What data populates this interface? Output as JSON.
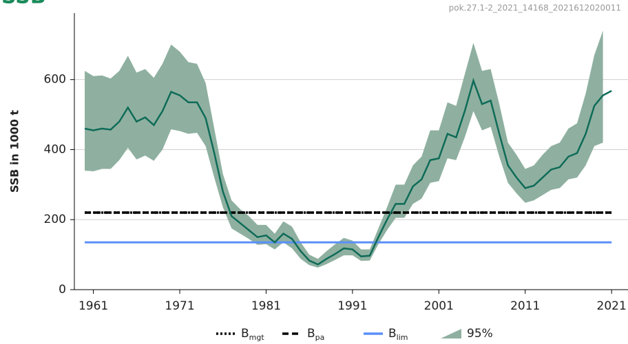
{
  "logo": "SSB",
  "chart_data": {
    "type": "line",
    "source_id": "pok.27.1-2_2021_14168_2021612020011",
    "ylabel": "SSB in 1000 t",
    "x": [
      1960,
      1961,
      1962,
      1963,
      1964,
      1965,
      1966,
      1967,
      1968,
      1969,
      1970,
      1971,
      1972,
      1973,
      1974,
      1975,
      1976,
      1977,
      1978,
      1979,
      1980,
      1981,
      1982,
      1983,
      1984,
      1985,
      1986,
      1987,
      1988,
      1989,
      1990,
      1991,
      1992,
      1993,
      1994,
      1995,
      1996,
      1997,
      1998,
      1999,
      2000,
      2001,
      2002,
      2003,
      2004,
      2005,
      2006,
      2007,
      2008,
      2009,
      2010,
      2011,
      2012,
      2013,
      2014,
      2015,
      2016,
      2017,
      2018,
      2019,
      2020,
      2021
    ],
    "series": [
      {
        "color": "#0e6b58",
        "values": [
          460,
          455,
          460,
          457,
          480,
          520,
          480,
          492,
          470,
          510,
          565,
          555,
          535,
          535,
          490,
          390,
          280,
          210,
          190,
          170,
          150,
          155,
          135,
          160,
          145,
          110,
          83,
          72,
          88,
          102,
          118,
          115,
          95,
          97,
          150,
          200,
          245,
          245,
          295,
          315,
          370,
          375,
          445,
          435,
          510,
          597,
          530,
          540,
          445,
          355,
          320,
          290,
          297,
          320,
          343,
          350,
          380,
          390,
          445,
          525,
          555,
          568
        ]
      }
    ],
    "band": {
      "name": "95%",
      "color": "#8fb0a0",
      "upper": [
        625,
        610,
        612,
        603,
        625,
        668,
        620,
        630,
        605,
        645,
        700,
        680,
        650,
        645,
        590,
        460,
        330,
        255,
        230,
        210,
        185,
        185,
        160,
        195,
        180,
        135,
        100,
        88,
        110,
        130,
        148,
        140,
        115,
        115,
        175,
        235,
        300,
        300,
        355,
        380,
        455,
        455,
        535,
        525,
        615,
        705,
        625,
        630,
        530,
        420,
        385,
        345,
        355,
        385,
        410,
        420,
        460,
        475,
        560,
        670,
        740,
        null
      ],
      "lower": [
        340,
        338,
        345,
        345,
        370,
        405,
        372,
        383,
        368,
        400,
        458,
        453,
        445,
        448,
        410,
        320,
        235,
        175,
        160,
        145,
        128,
        130,
        115,
        135,
        118,
        88,
        70,
        63,
        73,
        85,
        98,
        98,
        82,
        83,
        130,
        170,
        205,
        205,
        245,
        260,
        305,
        310,
        375,
        370,
        435,
        510,
        455,
        465,
        380,
        305,
        275,
        248,
        255,
        270,
        285,
        290,
        315,
        320,
        355,
        410,
        420,
        null
      ]
    },
    "reference_lines": [
      {
        "name": "B",
        "subscript": "mgt",
        "value": 220,
        "color": "#000000",
        "style": "dotted"
      },
      {
        "name": "B",
        "subscript": "pa",
        "value": 220,
        "color": "#000000",
        "style": "dashed"
      },
      {
        "name": "B",
        "subscript": "lim",
        "value": 135,
        "color": "#5b8ff9",
        "style": "solid"
      }
    ],
    "xlim": [
      1958.8,
      2022.9
    ],
    "ylim": [
      0,
      790
    ],
    "xticks": [
      1961,
      1971,
      1981,
      1991,
      2001,
      2011,
      2021
    ],
    "yticks": [
      0,
      200,
      400,
      600
    ],
    "grid": true
  }
}
